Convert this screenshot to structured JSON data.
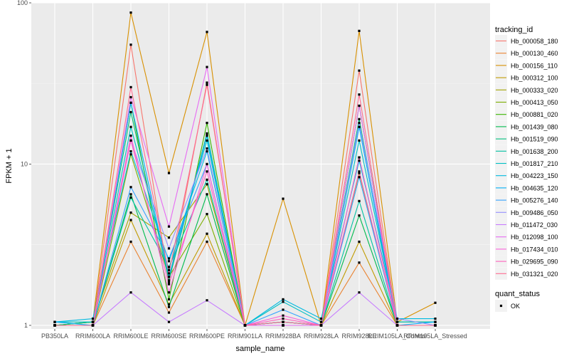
{
  "chart_data": {
    "type": "line",
    "xlabel": "sample_name",
    "ylabel": "FPKM + 1",
    "y_scale": "log10",
    "ylim": [
      0.95,
      100
    ],
    "y_ticks": [
      1,
      10,
      100
    ],
    "y_tick_labels": [
      "1",
      "10",
      "100"
    ],
    "grid": true,
    "legend_position": "right",
    "categories": [
      "PB350LA",
      "RRIM600LA",
      "RRIM600LE",
      "RRIM600SE",
      "RRIM600PE",
      "RRIM901LA",
      "RRIM928BA",
      "RRIM928LA",
      "RRIM928LE",
      "RRIM105LA_Control",
      "RRIM105LA_Stressed"
    ],
    "legend_title": "tracking_id",
    "shape_legend": {
      "title": "quant_status",
      "entries": [
        "OK"
      ]
    },
    "series": [
      {
        "name": "Hb_000058_180",
        "color": "#F8766D",
        "values": [
          1.0,
          1.0,
          55.0,
          1.85,
          32.0,
          1.0,
          1.05,
          1.0,
          38.0,
          1.0,
          1.0
        ]
      },
      {
        "name": "Hb_000130_460",
        "color": "#EA8331",
        "values": [
          1.0,
          1.0,
          3.3,
          1.2,
          3.3,
          1.0,
          1.0,
          1.0,
          2.45,
          1.0,
          1.0
        ]
      },
      {
        "name": "Hb_000156_110",
        "color": "#D89000",
        "values": [
          1.0,
          1.05,
          87.0,
          8.8,
          66.0,
          1.0,
          6.1,
          1.0,
          67.0,
          1.05,
          1.38
        ]
      },
      {
        "name": "Hb_000312_100",
        "color": "#C09B00",
        "values": [
          1.0,
          1.0,
          4.5,
          1.35,
          3.7,
          1.0,
          1.0,
          1.0,
          3.3,
          1.0,
          1.0
        ]
      },
      {
        "name": "Hb_000333_020",
        "color": "#A3A500",
        "values": [
          1.0,
          1.05,
          5.0,
          3.5,
          7.5,
          1.0,
          1.0,
          1.0,
          8.8,
          1.0,
          1.0
        ]
      },
      {
        "name": "Hb_000413_050",
        "color": "#7CAE00",
        "values": [
          1.0,
          1.0,
          11.5,
          2.0,
          4.9,
          1.0,
          1.0,
          1.0,
          11.0,
          1.0,
          1.0
        ]
      },
      {
        "name": "Hb_000881_020",
        "color": "#39B600",
        "values": [
          1.0,
          1.05,
          24.0,
          1.45,
          18.0,
          1.0,
          1.05,
          1.0,
          23.0,
          1.05,
          1.05
        ]
      },
      {
        "name": "Hb_001439_080",
        "color": "#00BB4E",
        "values": [
          1.0,
          1.0,
          6.5,
          1.3,
          6.5,
          1.0,
          1.0,
          1.0,
          4.8,
          1.0,
          1.0
        ]
      },
      {
        "name": "Hb_001519_090",
        "color": "#00BF7D",
        "values": [
          1.0,
          1.05,
          21.0,
          1.9,
          15.5,
          1.0,
          1.05,
          1.0,
          19.0,
          1.0,
          1.0
        ]
      },
      {
        "name": "Hb_001638_200",
        "color": "#00C1A3",
        "values": [
          1.0,
          1.0,
          6.2,
          2.3,
          8.0,
          1.0,
          1.0,
          1.0,
          5.9,
          1.0,
          1.0
        ]
      },
      {
        "name": "Hb_001817_210",
        "color": "#00BFC4",
        "values": [
          1.05,
          1.05,
          17.0,
          2.2,
          14.0,
          1.0,
          1.4,
          1.05,
          14.0,
          1.05,
          1.05
        ]
      },
      {
        "name": "Hb_004223_150",
        "color": "#00BAE0",
        "values": [
          1.05,
          1.1,
          12.0,
          2.5,
          12.0,
          1.0,
          1.45,
          1.1,
          10.5,
          1.1,
          1.1
        ]
      },
      {
        "name": "Hb_004635_120",
        "color": "#00B0F6",
        "values": [
          1.05,
          1.0,
          24.0,
          2.0,
          15.0,
          1.0,
          1.05,
          1.0,
          17.0,
          1.0,
          1.05
        ]
      },
      {
        "name": "Hb_005276_140",
        "color": "#35A2FF",
        "values": [
          1.0,
          1.0,
          7.2,
          2.6,
          10.0,
          1.0,
          1.25,
          1.0,
          8.3,
          1.0,
          1.0
        ]
      },
      {
        "name": "Hb_009486_050",
        "color": "#9590FF",
        "values": [
          1.0,
          1.0,
          14.0,
          3.0,
          12.5,
          1.0,
          1.0,
          1.0,
          18.0,
          1.1,
          1.0
        ]
      },
      {
        "name": "Hb_011472_030",
        "color": "#C77CFF",
        "values": [
          1.0,
          1.0,
          1.6,
          1.05,
          1.43,
          1.0,
          1.0,
          1.0,
          1.6,
          1.0,
          1.0
        ]
      },
      {
        "name": "Hb_012098_100",
        "color": "#E76BF3",
        "values": [
          1.0,
          1.0,
          26.0,
          4.1,
          40.0,
          1.0,
          1.0,
          1.0,
          23.0,
          1.0,
          1.0
        ]
      },
      {
        "name": "Hb_017434_010",
        "color": "#FA62DB",
        "values": [
          1.0,
          1.0,
          15.0,
          1.6,
          10.0,
          1.0,
          1.15,
          1.0,
          11.0,
          1.0,
          1.0
        ]
      },
      {
        "name": "Hb_029695_090",
        "color": "#FF62BC",
        "values": [
          1.0,
          1.0,
          14.0,
          1.8,
          9.0,
          1.0,
          1.1,
          1.0,
          9.0,
          1.0,
          1.0
        ]
      },
      {
        "name": "Hb_031321_020",
        "color": "#FF6C91",
        "values": [
          1.0,
          1.0,
          30.0,
          2.1,
          31.0,
          1.0,
          1.05,
          1.0,
          27.0,
          1.0,
          1.0
        ]
      }
    ]
  }
}
